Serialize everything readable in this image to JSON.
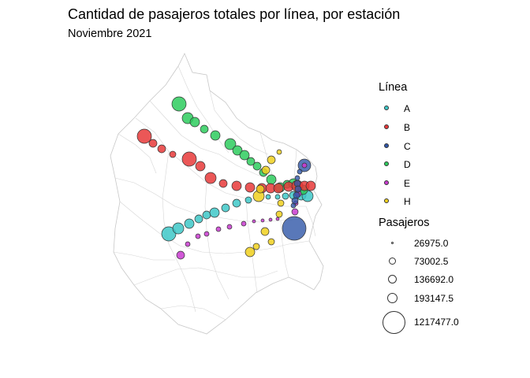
{
  "title": "Cantidad de pasajeros totales por línea, por estación",
  "subtitle": "Noviembre 2021",
  "legend_line": {
    "title": "Línea",
    "items": [
      {
        "label": "A",
        "color": "#3ec8c8"
      },
      {
        "label": "B",
        "color": "#e8393a"
      },
      {
        "label": "C",
        "color": "#3056a8"
      },
      {
        "label": "D",
        "color": "#2ecc5e"
      },
      {
        "label": "E",
        "color": "#c93bd0"
      },
      {
        "label": "H",
        "color": "#f0d01e"
      }
    ]
  },
  "legend_size": {
    "title": "Pasajeros",
    "items": [
      {
        "label": "26975.0",
        "value": 26975.0
      },
      {
        "label": "73002.5",
        "value": 73002.5
      },
      {
        "label": "136692.0",
        "value": 136692.0
      },
      {
        "label": "193147.5",
        "value": 193147.5
      },
      {
        "label": "1217477.0",
        "value": 1217477.0
      }
    ]
  },
  "chart_data": {
    "type": "scatter",
    "encoding": "proportional symbols over the commune map of Buenos Aires; color = line, size = passengers",
    "series": [
      {
        "name": "A",
        "values": [
          193000,
          160000,
          120000,
          95000,
          85000,
          75000,
          65000,
          60000,
          55000,
          55000,
          60000,
          65000,
          80000,
          100000,
          150000
        ]
      },
      {
        "name": "B",
        "values": [
          190000,
          75000,
          70000,
          40000,
          200000,
          95000,
          140000,
          80000,
          85000,
          90000,
          110000,
          100000,
          90000,
          120000,
          150000,
          130000,
          140000
        ]
      },
      {
        "name": "C",
        "values": [
          1217477,
          190000,
          60000,
          55000,
          55000,
          70000,
          80000,
          90000,
          60000
        ]
      },
      {
        "name": "D",
        "values": [
          200000,
          140000,
          95000,
          80000,
          100000,
          150000,
          120000,
          100000,
          85000,
          80000,
          85000,
          95000,
          110000,
          100000,
          120000,
          130000
        ]
      },
      {
        "name": "E",
        "values": [
          85000,
          45000,
          40000,
          35000,
          50000,
          40000,
          30000,
          45000,
          40000,
          55000,
          60000,
          70000,
          60000,
          50000
        ]
      },
      {
        "name": "H",
        "values": [
          120000,
          80000,
          75000,
          100000,
          110000,
          60000,
          55000,
          60000,
          75000,
          65000,
          70000
        ]
      }
    ]
  }
}
